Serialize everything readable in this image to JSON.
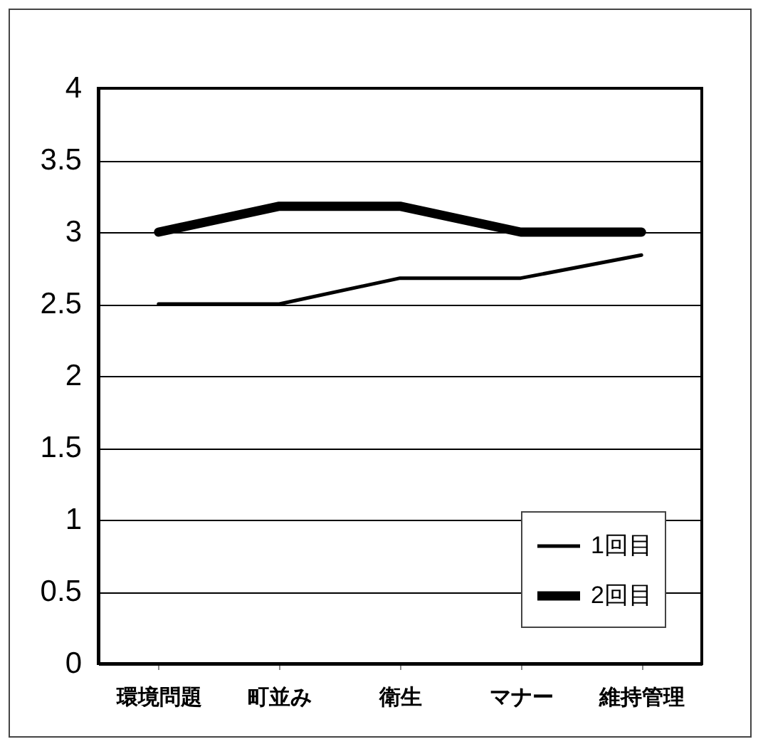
{
  "chart_data": {
    "type": "line",
    "categories": [
      "環境問題",
      "町並み",
      "衛生",
      "マナー",
      "維持管理"
    ],
    "series": [
      {
        "name": "1回目",
        "color": "#000000",
        "values": [
          2.5,
          2.5,
          2.68,
          2.68,
          2.84
        ]
      },
      {
        "name": "2回目",
        "color": "#000000",
        "values": [
          3.0,
          3.18,
          3.18,
          3.0,
          3.0
        ]
      }
    ],
    "ylim": [
      0,
      4
    ],
    "yticks": [
      0,
      0.5,
      1,
      1.5,
      2,
      2.5,
      3,
      3.5,
      4
    ],
    "grid": "y",
    "legend": "bottom right",
    "marker": "none",
    "line_style": "solid"
  }
}
